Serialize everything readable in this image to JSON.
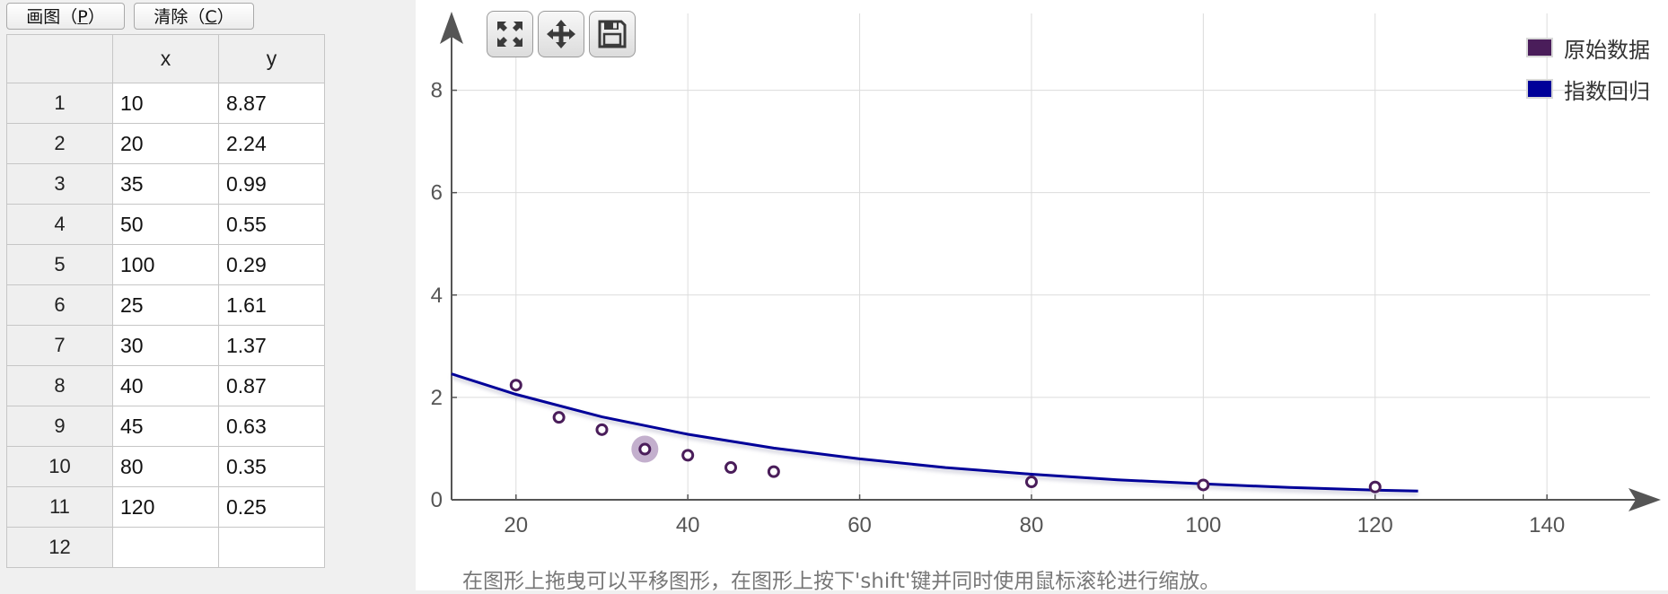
{
  "buttons": {
    "plot_prefix": "画图（",
    "plot_mnemonic": "P",
    "plot_suffix": "）",
    "clear_prefix": "清除（",
    "clear_mnemonic": "C",
    "clear_suffix": "）"
  },
  "table": {
    "headers": [
      "",
      "x",
      "y"
    ],
    "rows": [
      {
        "n": "1",
        "x": "10",
        "y": "8.87"
      },
      {
        "n": "2",
        "x": "20",
        "y": "2.24"
      },
      {
        "n": "3",
        "x": "35",
        "y": "0.99"
      },
      {
        "n": "4",
        "x": "50",
        "y": "0.55"
      },
      {
        "n": "5",
        "x": "100",
        "y": "0.29"
      },
      {
        "n": "6",
        "x": "25",
        "y": "1.61"
      },
      {
        "n": "7",
        "x": "30",
        "y": "1.37"
      },
      {
        "n": "8",
        "x": "40",
        "y": "0.87"
      },
      {
        "n": "9",
        "x": "45",
        "y": "0.63"
      },
      {
        "n": "10",
        "x": "80",
        "y": "0.35"
      },
      {
        "n": "11",
        "x": "120",
        "y": "0.25"
      },
      {
        "n": "12",
        "x": "",
        "y": ""
      }
    ]
  },
  "toolbar": {
    "icons": [
      "fullscreen-icon",
      "move-icon",
      "save-icon"
    ]
  },
  "hint_text": "在图形上拖曳可以平移图形，在图形上按下'shift'键并同时使用鼠标滚轮进行缩放。",
  "colors": {
    "scatter": "#4a1d5a",
    "regression": "#000099",
    "highlight": "#b9a1c4"
  },
  "chart_data": {
    "type": "scatter",
    "x_ticks": [
      20,
      40,
      60,
      80,
      100,
      120,
      140
    ],
    "y_ticks": [
      0,
      2,
      4,
      6,
      8
    ],
    "xlim": [
      12.5,
      152
    ],
    "ylim": [
      0,
      9.5
    ],
    "grid": true,
    "legend_position": "top-right",
    "series": [
      {
        "name": "原始数据",
        "kind": "scatter",
        "points": [
          [
            20,
            2.24
          ],
          [
            25,
            1.61
          ],
          [
            30,
            1.37
          ],
          [
            35,
            0.99
          ],
          [
            40,
            0.87
          ],
          [
            45,
            0.63
          ],
          [
            50,
            0.55
          ],
          [
            80,
            0.35
          ],
          [
            100,
            0.29
          ],
          [
            120,
            0.25
          ]
        ],
        "highlighted_x": 35
      },
      {
        "name": "指数回归",
        "kind": "line",
        "points": [
          [
            12.5,
            2.46
          ],
          [
            20,
            2.06
          ],
          [
            30,
            1.62
          ],
          [
            40,
            1.28
          ],
          [
            50,
            1.01
          ],
          [
            60,
            0.8
          ],
          [
            70,
            0.63
          ],
          [
            80,
            0.5
          ],
          [
            90,
            0.39
          ],
          [
            100,
            0.31
          ],
          [
            110,
            0.24
          ],
          [
            120,
            0.19
          ],
          [
            125,
            0.17
          ]
        ]
      }
    ]
  }
}
